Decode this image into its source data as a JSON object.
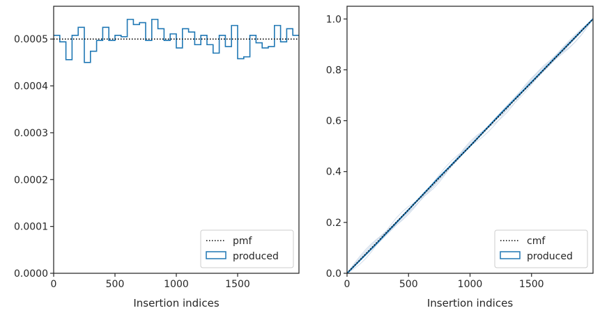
{
  "chart_data": [
    {
      "type": "line",
      "panel": "left",
      "xlabel": "Insertion indices",
      "ylabel": "",
      "xlim": [
        0,
        2000
      ],
      "ylim": [
        0,
        0.00057
      ],
      "xticks": [
        0,
        500,
        1000,
        1500
      ],
      "xtick_labels": [
        "0",
        "500",
        "1000",
        "1500"
      ],
      "yticks": [
        0,
        0.0001,
        0.0002,
        0.0003,
        0.0004,
        0.0005
      ],
      "ytick_labels": [
        "0.0000",
        "0.0001",
        "0.0002",
        "0.0003",
        "0.0004",
        "0.0005"
      ],
      "grid": false,
      "legend_position": "lower right",
      "legend": [
        "pmf",
        "produced"
      ],
      "series": [
        {
          "name": "pmf",
          "style": "dotted",
          "color": "#000000",
          "x": [
            0,
            2000
          ],
          "y": [
            0.0005,
            0.0005
          ]
        },
        {
          "name": "produced",
          "style": "step-histogram",
          "color": "#1f77b4",
          "bin_edges": [
            0,
            50,
            100,
            150,
            200,
            250,
            300,
            350,
            400,
            450,
            500,
            550,
            600,
            650,
            700,
            750,
            800,
            850,
            900,
            950,
            1000,
            1050,
            1100,
            1150,
            1200,
            1250,
            1300,
            1350,
            1400,
            1450,
            1500,
            1550,
            1600,
            1650,
            1700,
            1750,
            1800,
            1850,
            1900,
            1950,
            2000
          ],
          "values": [
            0.000508,
            0.000494,
            0.000456,
            0.000508,
            0.000525,
            0.00045,
            0.000474,
            0.000497,
            0.000525,
            0.000497,
            0.000508,
            0.000505,
            0.000542,
            0.000531,
            0.000535,
            0.000497,
            0.000542,
            0.000522,
            0.000497,
            0.000511,
            0.000481,
            0.000522,
            0.000515,
            0.000488,
            0.000508,
            0.000488,
            0.00047,
            0.000508,
            0.000484,
            0.000529,
            0.000458,
            0.000462,
            0.000508,
            0.000492,
            0.000481,
            0.000484,
            0.000529,
            0.000494,
            0.000522,
            0.000508
          ]
        }
      ]
    },
    {
      "type": "line",
      "panel": "right",
      "xlabel": "Insertion indices",
      "ylabel": "",
      "xlim": [
        0,
        2000
      ],
      "ylim": [
        0,
        1.05
      ],
      "xticks": [
        0,
        500,
        1000,
        1500
      ],
      "xtick_labels": [
        "0",
        "500",
        "1000",
        "1500"
      ],
      "yticks": [
        0,
        0.2,
        0.4,
        0.6,
        0.8,
        1.0
      ],
      "ytick_labels": [
        "0.0",
        "0.2",
        "0.4",
        "0.6",
        "0.8",
        "1.0"
      ],
      "grid": false,
      "legend_position": "lower right",
      "legend": [
        "cmf",
        "produced"
      ],
      "series": [
        {
          "name": "cmf",
          "style": "dotted",
          "color": "#000000",
          "x": [
            0,
            2000
          ],
          "y": [
            0,
            1.0
          ]
        },
        {
          "name": "produced",
          "style": "step-histogram-cumulative",
          "color": "#1f77b4",
          "x": [
            0,
            250,
            500,
            750,
            1000,
            1250,
            1500,
            1750,
            2000
          ],
          "y": [
            0,
            0.122,
            0.25,
            0.378,
            0.5,
            0.628,
            0.752,
            0.876,
            1.0
          ]
        }
      ],
      "faint_series_color": "#c8d6e6"
    }
  ]
}
